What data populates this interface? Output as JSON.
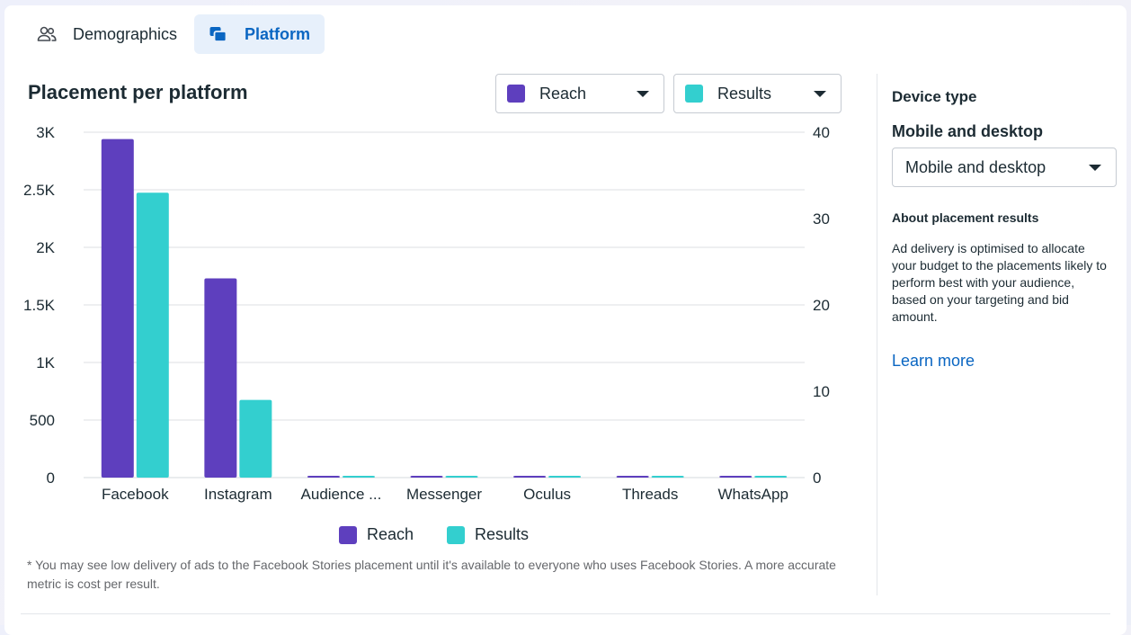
{
  "tabs": [
    {
      "label": "Demographics",
      "icon": "people-icon",
      "active": false
    },
    {
      "label": "Platform",
      "icon": "platform-icon",
      "active": true
    }
  ],
  "title": "Placement per platform",
  "metric_selects": {
    "left": {
      "label": "Reach",
      "color": "#5e3fbe"
    },
    "right": {
      "label": "Results",
      "color": "#33cfcf"
    }
  },
  "chart_data": {
    "type": "bar",
    "categories": [
      "Facebook",
      "Instagram",
      "Audience ...",
      "Messenger",
      "Oculus",
      "Threads",
      "WhatsApp"
    ],
    "series": [
      {
        "name": "Reach",
        "axis": "left",
        "color": "#5e3fbe",
        "values": [
          2940,
          1730,
          5,
          5,
          5,
          5,
          5
        ]
      },
      {
        "name": "Results",
        "axis": "right",
        "color": "#33cfcf",
        "values": [
          33,
          9,
          0.07,
          0.07,
          0.07,
          0.07,
          0.07
        ]
      }
    ],
    "y_left": {
      "ticks": [
        0,
        500,
        1000,
        1500,
        2000,
        2500,
        3000
      ],
      "tick_labels": [
        "0",
        "500",
        "1K",
        "1.5K",
        "2K",
        "2.5K",
        "3K"
      ],
      "ylim": [
        0,
        3000
      ]
    },
    "y_right": {
      "ticks": [
        0,
        10,
        20,
        30,
        40
      ],
      "tick_labels": [
        "0",
        "10",
        "20",
        "30",
        "40"
      ],
      "ylim": [
        0,
        40
      ]
    },
    "grid": true,
    "legend": "bottom"
  },
  "footnote": "* You may see low delivery of ads to the Facebook Stories placement until it's available to everyone who uses Facebook Stories. A more accurate metric is cost per result.",
  "sidebar": {
    "device_title": "Device type",
    "device_subtitle": "Mobile and desktop",
    "device_select": "Mobile and desktop",
    "about_title": "About placement results",
    "about_text": "Ad delivery is optimised to allocate your budget to the placements likely to perform best with your audience, based on your targeting and bid amount.",
    "learn_more": "Learn more"
  }
}
